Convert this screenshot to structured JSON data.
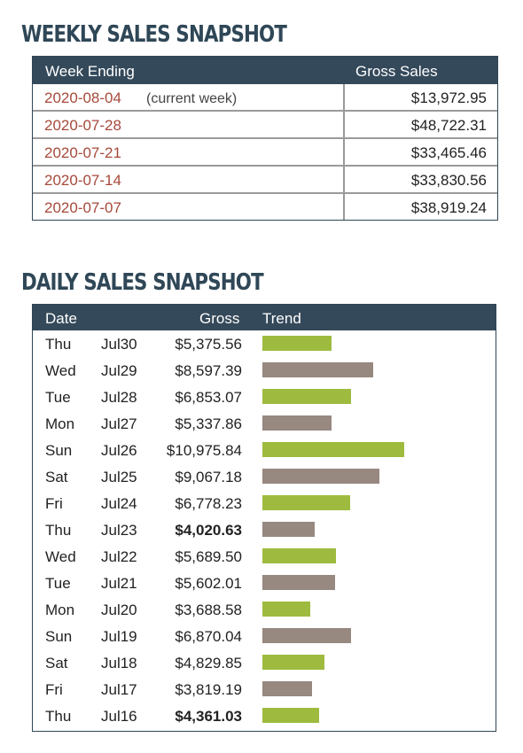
{
  "weekly": {
    "title": "WEEKLY SALES SNAPSHOT",
    "col_week": "Week Ending",
    "col_gross": "Gross Sales",
    "rows": [
      {
        "date": "2020-08-04",
        "note": "(current week)",
        "amount": "$13,972.95"
      },
      {
        "date": "2020-07-28",
        "note": "",
        "amount": "$48,722.31"
      },
      {
        "date": "2020-07-21",
        "note": "",
        "amount": "$33,465.46"
      },
      {
        "date": "2020-07-14",
        "note": "",
        "amount": "$33,830.56"
      },
      {
        "date": "2020-07-07",
        "note": "",
        "amount": "$38,919.24"
      }
    ]
  },
  "daily": {
    "title": "DAILY SALES SNAPSHOT",
    "col_date": "Date",
    "col_gross": "Gross",
    "col_trend": "Trend",
    "colors": {
      "up": "#9ebb3f",
      "down": "#978880"
    },
    "rows": [
      {
        "dow": "Thu",
        "date": "Jul30",
        "gross": "$5,375.56",
        "value": 5375.56,
        "bold": false,
        "trend": "up"
      },
      {
        "dow": "Wed",
        "date": "Jul29",
        "gross": "$8,597.39",
        "value": 8597.39,
        "bold": false,
        "trend": "down"
      },
      {
        "dow": "Tue",
        "date": "Jul28",
        "gross": "$6,853.07",
        "value": 6853.07,
        "bold": false,
        "trend": "up"
      },
      {
        "dow": "Mon",
        "date": "Jul27",
        "gross": "$5,337.86",
        "value": 5337.86,
        "bold": false,
        "trend": "down"
      },
      {
        "dow": "Sun",
        "date": "Jul26",
        "gross": "$10,975.84",
        "value": 10975.84,
        "bold": false,
        "trend": "up"
      },
      {
        "dow": "Sat",
        "date": "Jul25",
        "gross": "$9,067.18",
        "value": 9067.18,
        "bold": false,
        "trend": "down"
      },
      {
        "dow": "Fri",
        "date": "Jul24",
        "gross": "$6,778.23",
        "value": 6778.23,
        "bold": false,
        "trend": "up"
      },
      {
        "dow": "Thu",
        "date": "Jul23",
        "gross": "$4,020.63",
        "value": 4020.63,
        "bold": true,
        "trend": "down"
      },
      {
        "dow": "Wed",
        "date": "Jul22",
        "gross": "$5,689.50",
        "value": 5689.5,
        "bold": false,
        "trend": "up"
      },
      {
        "dow": "Tue",
        "date": "Jul21",
        "gross": "$5,602.01",
        "value": 5602.01,
        "bold": false,
        "trend": "down"
      },
      {
        "dow": "Mon",
        "date": "Jul20",
        "gross": "$3,688.58",
        "value": 3688.58,
        "bold": false,
        "trend": "up"
      },
      {
        "dow": "Sun",
        "date": "Jul19",
        "gross": "$6,870.04",
        "value": 6870.04,
        "bold": false,
        "trend": "down"
      },
      {
        "dow": "Sat",
        "date": "Jul18",
        "gross": "$4,829.85",
        "value": 4829.85,
        "bold": false,
        "trend": "up"
      },
      {
        "dow": "Fri",
        "date": "Jul17",
        "gross": "$3,819.19",
        "value": 3819.19,
        "bold": false,
        "trend": "down"
      },
      {
        "dow": "Thu",
        "date": "Jul16",
        "gross": "$4,361.03",
        "value": 4361.03,
        "bold": true,
        "trend": "up"
      }
    ]
  }
}
